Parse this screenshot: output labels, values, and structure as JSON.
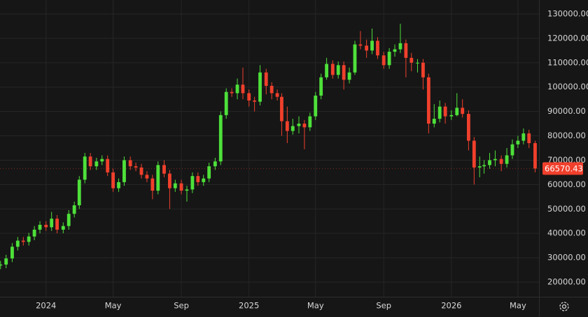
{
  "chart_data": {
    "type": "candlestick",
    "x": [
      "2023-10-11",
      "2023-10-21",
      "2023-11-01",
      "2023-11-11",
      "2023-11-21",
      "2023-12-01",
      "2023-12-11",
      "2023-12-21",
      "2024-01-01",
      "2024-01-11",
      "2024-01-21",
      "2024-02-01",
      "2024-02-11",
      "2024-02-21",
      "2024-03-01",
      "2024-03-11",
      "2024-03-21",
      "2024-04-01",
      "2024-04-11",
      "2024-04-21",
      "2024-05-01",
      "2024-05-11",
      "2024-05-21",
      "2024-06-01",
      "2024-06-11",
      "2024-06-21",
      "2024-07-01",
      "2024-07-11",
      "2024-07-21",
      "2024-08-01",
      "2024-08-11",
      "2024-08-21",
      "2024-09-01",
      "2024-09-11",
      "2024-09-21",
      "2024-10-01",
      "2024-10-11",
      "2024-10-21",
      "2024-11-01",
      "2024-11-11",
      "2024-11-21",
      "2024-12-01",
      "2024-12-11",
      "2024-12-21",
      "2025-01-01",
      "2025-01-11",
      "2025-01-21",
      "2025-02-01",
      "2025-02-11",
      "2025-02-21",
      "2025-03-01",
      "2025-03-11",
      "2025-03-21",
      "2025-04-01",
      "2025-04-11",
      "2025-04-21",
      "2025-05-01",
      "2025-05-11",
      "2025-05-21",
      "2025-06-01",
      "2025-06-11",
      "2025-06-21",
      "2025-07-01",
      "2025-07-11",
      "2025-07-21",
      "2025-08-01",
      "2025-08-11",
      "2025-08-21",
      "2025-09-01",
      "2025-09-11",
      "2025-09-21",
      "2025-10-01",
      "2025-10-11",
      "2025-10-21",
      "2025-11-01",
      "2025-11-11",
      "2025-11-21",
      "2025-12-01",
      "2025-12-11",
      "2025-12-21",
      "2026-01-01",
      "2026-01-11",
      "2026-01-21",
      "2026-02-01",
      "2026-02-11",
      "2026-02-21",
      "2026-03-01",
      "2026-03-11",
      "2026-03-21",
      "2026-04-01",
      "2026-04-11",
      "2026-04-21",
      "2026-05-01",
      "2026-05-11",
      "2026-05-21",
      "2026-06-01"
    ],
    "open": [
      26800,
      27200,
      29700,
      34500,
      37000,
      36500,
      38700,
      41500,
      43500,
      42500,
      46000,
      41500,
      43000,
      48000,
      51500,
      62000,
      71500,
      67500,
      69500,
      70500,
      65000,
      58500,
      61000,
      70000,
      67500,
      67000,
      64000,
      62500,
      57500,
      68000,
      64500,
      58500,
      60500,
      57500,
      58000,
      63500,
      61000,
      62500,
      67500,
      69500,
      88500,
      98000,
      97500,
      101000,
      97500,
      94500,
      94000,
      106000,
      100500,
      97500,
      96000,
      86000,
      82000,
      84000,
      85000,
      83500,
      88000,
      96500,
      104000,
      109500,
      105000,
      109000,
      103000,
      106000,
      117500,
      117000,
      115000,
      119000,
      113000,
      109000,
      114500,
      115500,
      118000,
      112000,
      110000,
      110000,
      104000,
      85000,
      87000,
      92000,
      88000,
      88500,
      91500,
      89000,
      78000,
      67000,
      67500,
      68000,
      70000,
      70500,
      68500,
      72000,
      76500,
      78000,
      81000,
      77000
    ],
    "high": [
      28700,
      31200,
      36000,
      38500,
      38500,
      40200,
      43000,
      45000,
      45000,
      48800,
      47500,
      44500,
      49500,
      53000,
      63500,
      73000,
      73000,
      71000,
      72000,
      72000,
      66500,
      62500,
      71500,
      71500,
      69000,
      68500,
      65500,
      64000,
      69500,
      70000,
      66000,
      62000,
      62000,
      59500,
      65000,
      65000,
      64000,
      69000,
      71000,
      90000,
      99500,
      99500,
      103500,
      108000,
      99000,
      96000,
      109000,
      107500,
      102000,
      99000,
      97500,
      92000,
      87000,
      88000,
      86500,
      89500,
      98000,
      105500,
      112000,
      111000,
      110500,
      110500,
      108000,
      119000,
      123000,
      119500,
      124000,
      120500,
      114500,
      116000,
      117500,
      126000,
      119500,
      114000,
      111500,
      111500,
      105500,
      93000,
      94500,
      93500,
      90500,
      97500,
      95000,
      90500,
      79500,
      71500,
      70000,
      73000,
      74000,
      72000,
      75000,
      78500,
      80000,
      83000,
      82500,
      78000
    ],
    "low": [
      25300,
      25700,
      28200,
      33000,
      35000,
      35000,
      37200,
      40000,
      41000,
      41000,
      40000,
      40000,
      41500,
      46500,
      50000,
      60500,
      66000,
      66000,
      68000,
      63500,
      57000,
      57000,
      59500,
      66000,
      65500,
      62500,
      61000,
      54000,
      56000,
      63000,
      50000,
      57000,
      56000,
      53000,
      56500,
      59500,
      59500,
      61000,
      66000,
      68000,
      87000,
      96000,
      95000,
      95000,
      92000,
      90000,
      92500,
      97000,
      95000,
      94500,
      80000,
      77000,
      80500,
      81000,
      74500,
      82000,
      86500,
      95000,
      103000,
      103500,
      103500,
      99000,
      101500,
      105000,
      115500,
      112000,
      113500,
      111500,
      107500,
      107500,
      112500,
      114000,
      104000,
      106500,
      106000,
      99000,
      81000,
      83500,
      85500,
      85000,
      86500,
      88000,
      87500,
      74000,
      60000,
      63000,
      64500,
      66500,
      67500,
      65500,
      67000,
      70500,
      75000,
      76500,
      75000,
      65000
    ],
    "close": [
      27200,
      29700,
      34500,
      37000,
      36500,
      38700,
      41500,
      43500,
      42500,
      46000,
      41500,
      43000,
      48000,
      51500,
      62000,
      71500,
      67500,
      69500,
      70500,
      65000,
      58500,
      61000,
      70000,
      67500,
      67000,
      64000,
      62500,
      57500,
      68000,
      64500,
      58500,
      60500,
      57500,
      58000,
      63500,
      61000,
      62500,
      67500,
      69500,
      88500,
      98000,
      97500,
      101000,
      97500,
      94500,
      94000,
      106000,
      100500,
      97500,
      96000,
      86000,
      82000,
      84000,
      85000,
      83500,
      88000,
      96500,
      104000,
      109500,
      105000,
      109000,
      103000,
      106000,
      117500,
      117000,
      115000,
      119000,
      113000,
      109000,
      114500,
      115500,
      118000,
      112000,
      110000,
      110000,
      104000,
      85000,
      87000,
      92000,
      88000,
      88500,
      91500,
      89000,
      78000,
      67000,
      67500,
      68000,
      70000,
      70500,
      68500,
      72000,
      76500,
      78000,
      81000,
      77000,
      66570.43
    ],
    "up_color": "#4ee03a",
    "down_color": "#f0402c",
    "xlim": [
      "2023-10-10",
      "2026-06-08"
    ],
    "xticks": [
      {
        "value": "2024-01-01",
        "label": "2024"
      },
      {
        "value": "2024-05-01",
        "label": "May"
      },
      {
        "value": "2024-09-01",
        "label": "Sep"
      },
      {
        "value": "2025-01-01",
        "label": "2025"
      },
      {
        "value": "2025-05-01",
        "label": "May"
      },
      {
        "value": "2025-09-01",
        "label": "Sep"
      },
      {
        "value": "2026-01-01",
        "label": "2026"
      },
      {
        "value": "2026-05-01",
        "label": "May"
      }
    ],
    "ylim": [
      13980,
      135730
    ],
    "yticks": [
      {
        "value": 20000,
        "label": "20000.00"
      },
      {
        "value": 30000,
        "label": "30000.00"
      },
      {
        "value": 40000,
        "label": "40000.00"
      },
      {
        "value": 50000,
        "label": "50000.00"
      },
      {
        "value": 60000,
        "label": "60000.00"
      },
      {
        "value": 70000,
        "label": "70000.00"
      },
      {
        "value": 80000,
        "label": "80000.00"
      },
      {
        "value": 90000,
        "label": "90000.00"
      },
      {
        "value": 100000,
        "label": "100000.00"
      },
      {
        "value": 110000,
        "label": "110000.00"
      },
      {
        "value": 120000,
        "label": "120000.00"
      },
      {
        "value": 130000,
        "label": "130000.00"
      }
    ],
    "grid": true
  }
}
